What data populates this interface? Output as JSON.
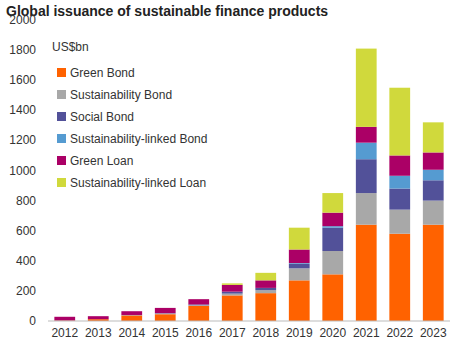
{
  "chart_data": {
    "type": "bar",
    "stacked": true,
    "title": "Global issuance of sustainable finance products",
    "ylabel": "US$bn",
    "categories": [
      "2012",
      "2013",
      "2014",
      "2015",
      "2016",
      "2017",
      "2018",
      "2019",
      "2020",
      "2021",
      "2022",
      "2023"
    ],
    "series": [
      {
        "name": "Green Bond",
        "color": "#ff6200",
        "values": [
          3,
          12,
          37,
          45,
          100,
          170,
          185,
          270,
          310,
          640,
          580,
          640
        ]
      },
      {
        "name": "Sustainability Bond",
        "color": "#a8a8a8",
        "values": [
          0,
          0,
          2,
          5,
          5,
          12,
          20,
          80,
          155,
          210,
          160,
          160
        ]
      },
      {
        "name": "Social Bond",
        "color": "#525199",
        "values": [
          0,
          0,
          1,
          2,
          5,
          13,
          15,
          30,
          155,
          225,
          140,
          135
        ]
      },
      {
        "name": "Sustainability-linked Bond",
        "color": "#559bd1",
        "values": [
          0,
          0,
          0,
          0,
          0,
          0,
          0,
          5,
          10,
          110,
          85,
          70
        ]
      },
      {
        "name": "Green Loan",
        "color": "#ab0066",
        "values": [
          25,
          20,
          25,
          35,
          35,
          45,
          50,
          90,
          90,
          105,
          135,
          115
        ]
      },
      {
        "name": "Sustainability-linked Loan",
        "color": "#d0d93c",
        "values": [
          0,
          0,
          0,
          0,
          0,
          10,
          50,
          145,
          130,
          520,
          450,
          200
        ]
      }
    ],
    "ylim": [
      0,
      2000
    ],
    "yticks": [
      0,
      200,
      400,
      600,
      800,
      1000,
      1200,
      1400,
      1600,
      1800,
      2000
    ],
    "grid": false,
    "legend": "top-left"
  }
}
